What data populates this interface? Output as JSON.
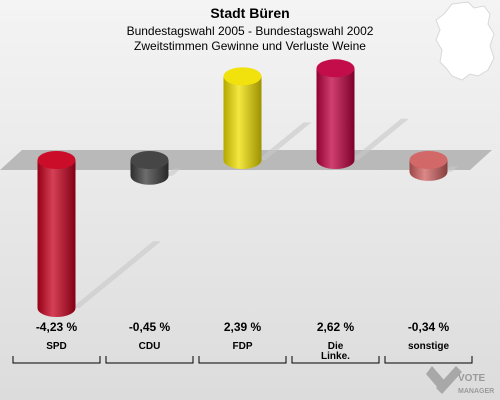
{
  "chart_data": {
    "type": "bar",
    "title": "Stadt Büren",
    "subtitle_lines": [
      "Bundestagswahl 2005 - Bundestagswahl 2002",
      "Zweitstimmen Gewinne und Verluste Weine"
    ],
    "categories": [
      [
        "SPD"
      ],
      [
        "CDU"
      ],
      [
        "FDP"
      ],
      [
        "Die",
        "Linke."
      ],
      [
        "sonstige"
      ]
    ],
    "values": [
      -4.23,
      -0.45,
      2.39,
      2.62,
      -0.34
    ],
    "value_labels": [
      "-4,23 %",
      "-0,45 %",
      "2,39 %",
      "2,62 %",
      "-0,34 %"
    ],
    "colors": [
      "#c8001e",
      "#3c3c3c",
      "#f0e000",
      "#c00040",
      "#d06060"
    ],
    "ylim": [
      -4.5,
      3.0
    ],
    "grid": false,
    "legend": "none"
  },
  "logo": {
    "line1": "VOTE",
    "line2": "MANAGER",
    "icon": "vote-manager-check-icon"
  },
  "map": {
    "icon": "germany-map-icon"
  }
}
